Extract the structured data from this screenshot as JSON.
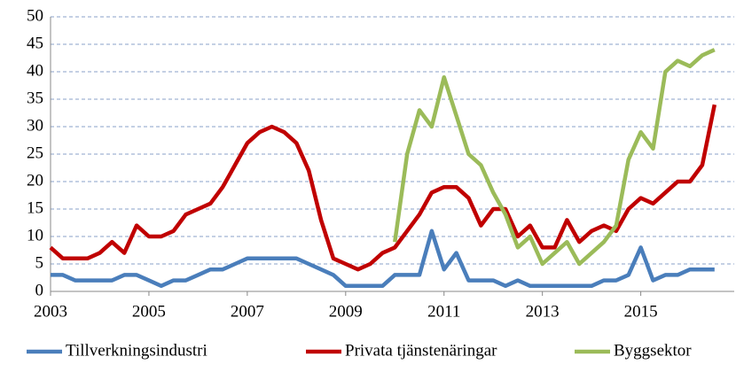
{
  "chart_data": {
    "type": "line",
    "x": [
      2003,
      2003.25,
      2003.5,
      2003.75,
      2004,
      2004.25,
      2004.5,
      2004.75,
      2005,
      2005.25,
      2005.5,
      2005.75,
      2006,
      2006.25,
      2006.5,
      2006.75,
      2007,
      2007.25,
      2007.5,
      2007.75,
      2008,
      2008.25,
      2008.5,
      2008.75,
      2009,
      2009.25,
      2009.5,
      2009.75,
      2010,
      2010.25,
      2010.5,
      2010.75,
      2011,
      2011.25,
      2011.5,
      2011.75,
      2012,
      2012.25,
      2012.5,
      2012.75,
      2013,
      2013.25,
      2013.5,
      2013.75,
      2014,
      2014.25,
      2014.5,
      2014.75,
      2015,
      2015.25,
      2015.5,
      2015.75,
      2016,
      2016.25,
      2016.5
    ],
    "series": [
      {
        "name": "Tillverkningsindustri",
        "color": "#4a7ebb",
        "values": [
          3,
          3,
          2,
          2,
          2,
          2,
          3,
          3,
          2,
          1,
          2,
          2,
          3,
          4,
          4,
          5,
          6,
          6,
          6,
          6,
          6,
          5,
          4,
          3,
          1,
          1,
          1,
          1,
          3,
          3,
          3,
          11,
          4,
          7,
          2,
          2,
          2,
          1,
          2,
          1,
          1,
          1,
          1,
          1,
          1,
          2,
          2,
          3,
          8,
          2,
          3,
          3,
          4,
          4,
          4
        ]
      },
      {
        "name": "Privata tjänstenäringar",
        "color": "#c00000",
        "values": [
          8,
          6,
          6,
          6,
          7,
          9,
          7,
          12,
          10,
          10,
          11,
          14,
          15,
          16,
          19,
          23,
          27,
          29,
          30,
          29,
          27,
          22,
          13,
          6,
          5,
          4,
          5,
          7,
          8,
          11,
          14,
          18,
          19,
          19,
          17,
          12,
          15,
          15,
          10,
          12,
          8,
          8,
          13,
          9,
          11,
          12,
          11,
          15,
          17,
          16,
          18,
          20,
          20,
          23,
          34
        ]
      },
      {
        "name": "Byggsektor",
        "color": "#9bbb59",
        "values": [
          null,
          null,
          null,
          null,
          null,
          null,
          null,
          null,
          null,
          null,
          null,
          null,
          null,
          null,
          null,
          null,
          null,
          null,
          null,
          null,
          null,
          null,
          null,
          null,
          null,
          null,
          null,
          null,
          9,
          25,
          33,
          30,
          39,
          32,
          25,
          23,
          18,
          14,
          8,
          10,
          5,
          7,
          9,
          5,
          7,
          9,
          12,
          24,
          29,
          26,
          40,
          42,
          41,
          43,
          44
        ]
      }
    ],
    "xlim": [
      2003,
      2016.9
    ],
    "xticks": [
      2003,
      2005,
      2007,
      2009,
      2011,
      2013,
      2015
    ],
    "ylim": [
      0,
      50
    ],
    "yticks": [
      0,
      5,
      10,
      15,
      20,
      25,
      30,
      35,
      40,
      45,
      50
    ],
    "grid": true,
    "legend": "bottom"
  }
}
